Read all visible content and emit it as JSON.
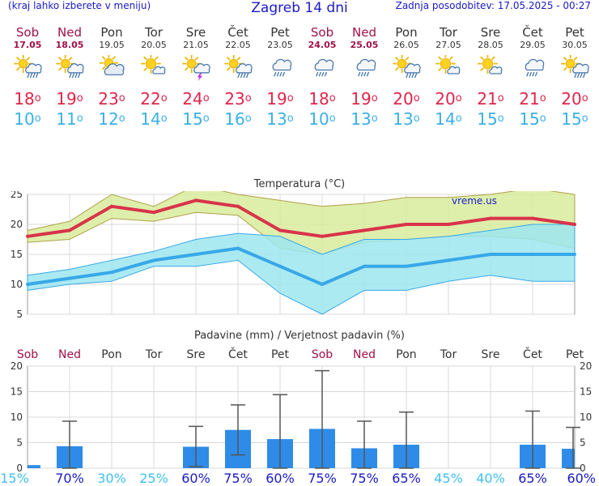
{
  "header": {
    "menu_hint": "(kraj lahko izberete v meniju)",
    "title": "Zagreb 14 dni",
    "updated": "Zadnja posodobitev: 17.05.2025 - 00:27"
  },
  "days": [
    {
      "name": "Sob",
      "date": "17.05",
      "weekend": true,
      "icon": "sun-cloud-rain-icon",
      "max": "18",
      "min": "10",
      "precip_prob": "15%"
    },
    {
      "name": "Ned",
      "date": "18.05",
      "weekend": true,
      "icon": "sun-cloud-rain-icon",
      "max": "19",
      "min": "11",
      "precip_prob": "70%"
    },
    {
      "name": "Pon",
      "date": "19.05",
      "weekend": false,
      "icon": "sun-cloud-icon",
      "max": "23",
      "min": "12",
      "precip_prob": "30%"
    },
    {
      "name": "Tor",
      "date": "20.05",
      "weekend": false,
      "icon": "sun-partly-cloudy-icon",
      "max": "22",
      "min": "14",
      "precip_prob": "25%"
    },
    {
      "name": "Sre",
      "date": "21.05",
      "weekend": false,
      "icon": "sun-thunderstorm-icon",
      "max": "24",
      "min": "15",
      "precip_prob": "60%"
    },
    {
      "name": "Čet",
      "date": "22.05",
      "weekend": false,
      "icon": "sun-cloud-rain-icon",
      "max": "23",
      "min": "16",
      "precip_prob": "75%"
    },
    {
      "name": "Pet",
      "date": "23.05",
      "weekend": false,
      "icon": "cloud-rain-icon",
      "max": "19",
      "min": "13",
      "precip_prob": "60%"
    },
    {
      "name": "Sob",
      "date": "24.05",
      "weekend": true,
      "icon": "cloud-rain-icon",
      "max": "18",
      "min": "10",
      "precip_prob": "75%"
    },
    {
      "name": "Ned",
      "date": "25.05",
      "weekend": true,
      "icon": "cloud-rain-icon",
      "max": "19",
      "min": "13",
      "precip_prob": "75%"
    },
    {
      "name": "Pon",
      "date": "26.05",
      "weekend": false,
      "icon": "sun-cloud-rain-icon",
      "max": "20",
      "min": "13",
      "precip_prob": "65%"
    },
    {
      "name": "Tor",
      "date": "27.05",
      "weekend": false,
      "icon": "sun-partly-cloudy-icon",
      "max": "20",
      "min": "14",
      "precip_prob": "45%"
    },
    {
      "name": "Sre",
      "date": "28.05",
      "weekend": false,
      "icon": "sun-partly-cloudy-icon",
      "max": "21",
      "min": "15",
      "precip_prob": "40%"
    },
    {
      "name": "Čet",
      "date": "29.05",
      "weekend": false,
      "icon": "cloud-rain-icon",
      "max": "21",
      "min": "15",
      "precip_prob": "65%"
    },
    {
      "name": "Pet",
      "date": "30.05",
      "weekend": false,
      "icon": "sun-cloud-rain-icon",
      "max": "20",
      "min": "15",
      "precip_prob": "60%"
    }
  ],
  "colors": {
    "weekend": "#a0104a",
    "weekday": "#333333",
    "max_line": "#d8344a",
    "min_line": "#38a8e8",
    "max_band": "#d8ec9c",
    "min_band": "#9ee6f0",
    "overlap_band": "#88d88a",
    "bar": "#2e8ce8",
    "prob_high": "#1a1ac8",
    "prob_low": "#40c0f0"
  },
  "chart_data": [
    {
      "type": "line",
      "title": "Temperatura (°C)",
      "watermark": "vreme.us",
      "categories": [
        "Sob",
        "Ned",
        "Pon",
        "Tor",
        "Sre",
        "Čet",
        "Pet",
        "Sob",
        "Ned",
        "Pon",
        "Tor",
        "Sre",
        "Čet",
        "Pet"
      ],
      "series": [
        {
          "values": [
            18,
            19,
            23,
            22,
            24,
            23,
            19,
            18,
            19,
            20,
            20,
            21,
            21,
            20
          ]
        },
        {
          "values": [
            10,
            11,
            12,
            14,
            15,
            16,
            13,
            10,
            13,
            13,
            14,
            15,
            15,
            15
          ]
        }
      ],
      "max_range": {
        "low": [
          17,
          17.5,
          21,
          20.5,
          22,
          21.5,
          16,
          15,
          17,
          17.5,
          18,
          18,
          17.5,
          16
        ],
        "high": [
          19,
          20.5,
          25,
          23,
          26.5,
          25,
          24,
          23,
          23.5,
          24.5,
          24.5,
          25,
          26,
          25
        ]
      },
      "min_range": {
        "low": [
          9,
          10,
          10.5,
          13,
          13,
          14,
          8.5,
          5,
          9,
          9,
          10.5,
          11.5,
          10.5,
          10.5
        ],
        "high": [
          11.5,
          12.5,
          14,
          15.5,
          17.5,
          18.5,
          18,
          15,
          17.5,
          17.5,
          18,
          19,
          20,
          20
        ]
      },
      "ylim": [
        5,
        25
      ],
      "yticks": [
        5,
        10,
        15,
        20,
        25
      ],
      "grid": true
    },
    {
      "type": "bar",
      "title": "Padavine (mm) / Verjetnost padavin (%)",
      "categories": [
        "Sob",
        "Ned",
        "Pon",
        "Tor",
        "Sre",
        "Čet",
        "Pet",
        "Sob",
        "Ned",
        "Pon",
        "Tor",
        "Sre",
        "Čet",
        "Pet"
      ],
      "values": [
        0.6,
        4.3,
        0,
        0,
        4.2,
        7.5,
        5.7,
        7.7,
        3.9,
        4.6,
        0,
        0,
        4.6,
        3.8
      ],
      "error_low": [
        0,
        0,
        0,
        0,
        0.3,
        2.6,
        0,
        0,
        0,
        0,
        0,
        0,
        0,
        0
      ],
      "error_high": [
        0.6,
        9.2,
        0,
        0,
        8.2,
        12.4,
        14.4,
        19.1,
        9.2,
        11,
        0,
        0,
        11.2,
        8
      ],
      "ylim": [
        0,
        20
      ],
      "yticks": [
        0,
        5,
        10,
        15,
        20
      ],
      "grid": true
    }
  ]
}
